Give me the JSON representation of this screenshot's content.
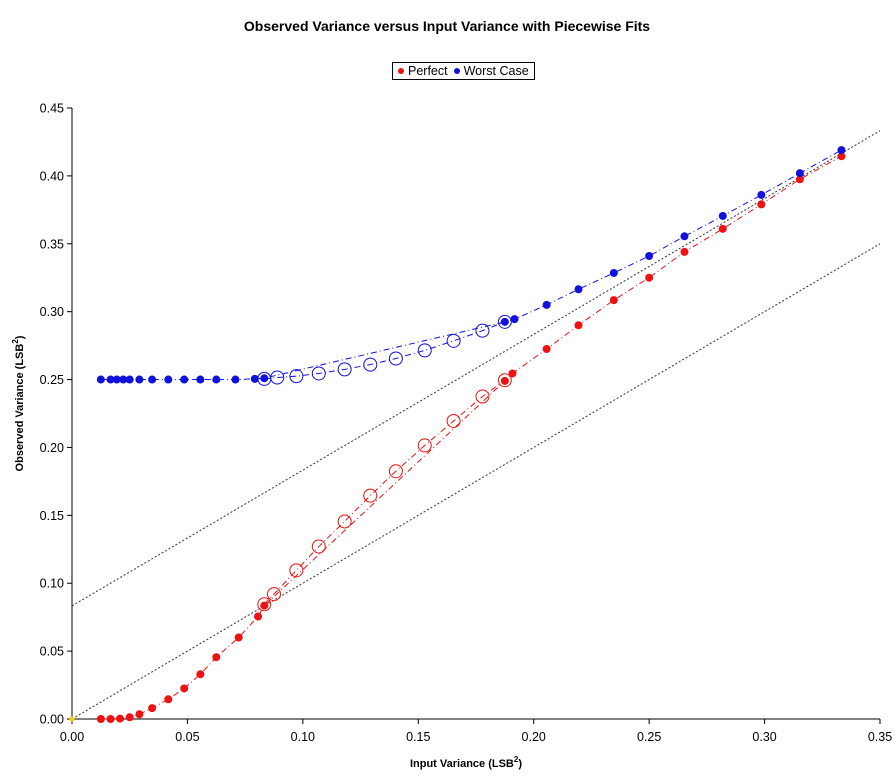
{
  "chart_data": {
    "type": "scatter",
    "title": "Observed Variance versus Input Variance with Piecewise Fits",
    "xlabel": "Input Variance (LSB",
    "xlabel_sup": "2",
    "xlabel_end": ")",
    "ylabel": "Observed Variance (LSB",
    "ylabel_sup": "2",
    "ylabel_end": ")",
    "xlim": [
      0,
      0.35
    ],
    "ylim": [
      0,
      0.45
    ],
    "x_ticks": [
      "0.00",
      "0.05",
      "0.10",
      "0.15",
      "0.20",
      "0.25",
      "0.30",
      "0.35"
    ],
    "y_ticks": [
      "0.00",
      "0.05",
      "0.10",
      "0.15",
      "0.20",
      "0.25",
      "0.30",
      "0.35",
      "0.40",
      "0.45"
    ],
    "legend": {
      "placement": "top-center",
      "entries": [
        "Perfect",
        "Worst Case"
      ]
    },
    "grid": false,
    "series": [
      {
        "name": "Perfect",
        "color": "#ee1111",
        "marker": "filled-circle",
        "line": "dash-dot",
        "points": [
          [
            0.0125,
            0.0
          ],
          [
            0.0167,
            0.0
          ],
          [
            0.0208,
            0.0003
          ],
          [
            0.025,
            0.0013
          ],
          [
            0.0292,
            0.0035
          ],
          [
            0.0347,
            0.008
          ],
          [
            0.0417,
            0.0145
          ],
          [
            0.0486,
            0.0225
          ],
          [
            0.0556,
            0.033
          ],
          [
            0.0625,
            0.0455
          ],
          [
            0.0722,
            0.06
          ],
          [
            0.0806,
            0.0755
          ],
          [
            0.0833,
            0.0835
          ],
          [
            0.1875,
            0.249
          ],
          [
            0.1908,
            0.2545
          ],
          [
            0.2056,
            0.2725
          ],
          [
            0.2194,
            0.29
          ],
          [
            0.2347,
            0.3085
          ],
          [
            0.25,
            0.325
          ],
          [
            0.2653,
            0.344
          ],
          [
            0.2819,
            0.361
          ],
          [
            0.2986,
            0.379
          ],
          [
            0.3153,
            0.3975
          ],
          [
            0.3333,
            0.4145
          ]
        ]
      },
      {
        "name": "Perfect fit",
        "color": "#ee1111",
        "marker": "open-circle",
        "line": "dash-dot",
        "points": [
          [
            0.0833,
            0.0845
          ],
          [
            0.0875,
            0.092
          ],
          [
            0.0972,
            0.1095
          ],
          [
            0.1069,
            0.127
          ],
          [
            0.1181,
            0.1455
          ],
          [
            0.1292,
            0.1645
          ],
          [
            0.1403,
            0.1825
          ],
          [
            0.1528,
            0.2015
          ],
          [
            0.1653,
            0.2195
          ],
          [
            0.1778,
            0.2375
          ],
          [
            0.1875,
            0.2495
          ]
        ]
      },
      {
        "name": "Worst Case",
        "color": "#1111dd",
        "marker": "filled-circle",
        "line": "dash-dot",
        "points": [
          [
            0.0125,
            0.25
          ],
          [
            0.0167,
            0.25
          ],
          [
            0.0194,
            0.25
          ],
          [
            0.0222,
            0.25
          ],
          [
            0.025,
            0.25
          ],
          [
            0.0292,
            0.25
          ],
          [
            0.0347,
            0.25
          ],
          [
            0.0417,
            0.25
          ],
          [
            0.0486,
            0.25
          ],
          [
            0.0556,
            0.25
          ],
          [
            0.0625,
            0.25
          ],
          [
            0.0708,
            0.25
          ],
          [
            0.0792,
            0.2505
          ],
          [
            0.0833,
            0.251
          ],
          [
            0.1875,
            0.2925
          ],
          [
            0.1917,
            0.2945
          ],
          [
            0.2056,
            0.305
          ],
          [
            0.2194,
            0.3165
          ],
          [
            0.2347,
            0.3285
          ],
          [
            0.25,
            0.341
          ],
          [
            0.2653,
            0.3555
          ],
          [
            0.2819,
            0.3705
          ],
          [
            0.2986,
            0.386
          ],
          [
            0.3153,
            0.402
          ],
          [
            0.3333,
            0.419
          ]
        ]
      },
      {
        "name": "Worst Case fit",
        "color": "#1111dd",
        "marker": "open-circle",
        "line": "dash-dot",
        "points": [
          [
            0.0833,
            0.2505
          ],
          [
            0.0889,
            0.2515
          ],
          [
            0.0972,
            0.2525
          ],
          [
            0.1069,
            0.2545
          ],
          [
            0.1181,
            0.2575
          ],
          [
            0.1292,
            0.261
          ],
          [
            0.1403,
            0.2655
          ],
          [
            0.1528,
            0.2715
          ],
          [
            0.1653,
            0.2785
          ],
          [
            0.1778,
            0.286
          ],
          [
            0.1875,
            0.2925
          ]
        ]
      }
    ],
    "reference_lines": [
      {
        "style": "black-dotted",
        "from": [
          0,
          0
        ],
        "to": [
          0.35,
          0.35
        ]
      },
      {
        "style": "black-dotted",
        "from": [
          0,
          0.0833
        ],
        "to": [
          0.35,
          0.4333
        ]
      }
    ],
    "origin_marker_color": "#f2d200"
  }
}
